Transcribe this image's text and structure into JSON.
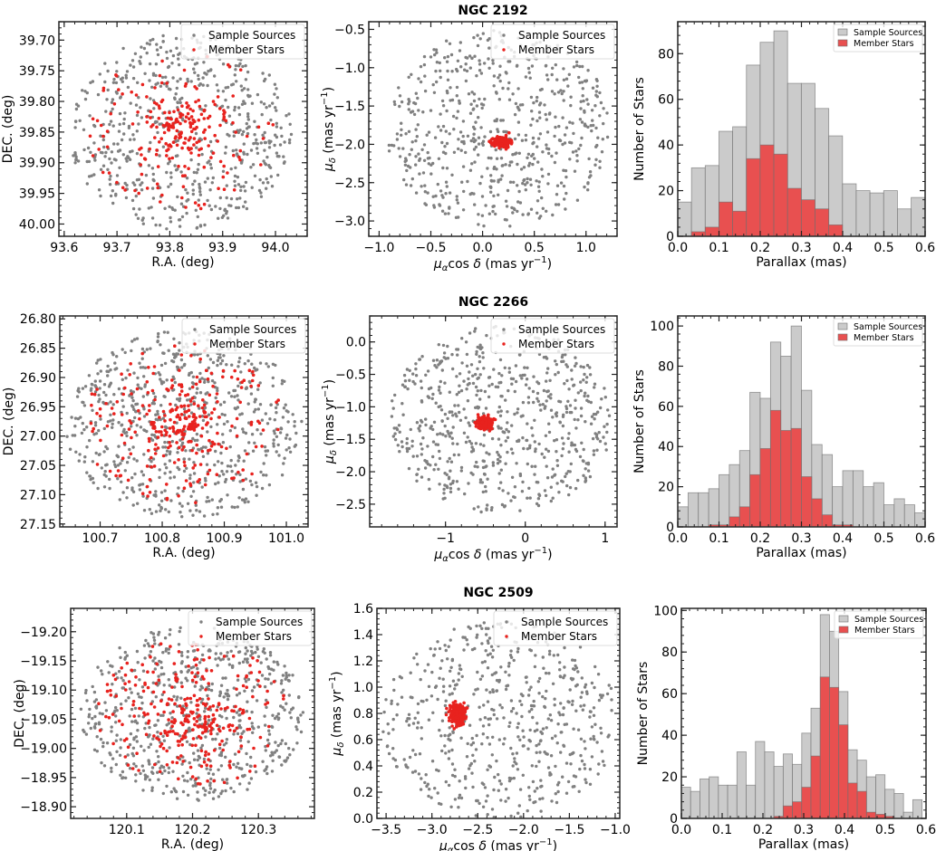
{
  "chart_data": [
    {
      "row_title": "NGC 2192",
      "panels": [
        {
          "type": "scatter",
          "xlabel": "R.A. (deg)",
          "ylabel": "DEC. (deg)",
          "xlim": [
            93.59,
            94.06
          ],
          "ylim": [
            40.02,
            39.67
          ],
          "xticks": [
            93.6,
            93.7,
            93.8,
            93.9,
            94.0
          ],
          "xtick_labels": [
            "93.6",
            "93.7",
            "93.8",
            "93.9",
            "94.0"
          ],
          "yticks": [
            39.7,
            39.75,
            39.8,
            39.85,
            39.9,
            39.95,
            40.0
          ],
          "ytick_labels": [
            "39.70",
            "39.75",
            "39.80",
            "39.85",
            "39.90",
            "39.95",
            "40.00"
          ],
          "legend": [
            "Sample Sources",
            "Member Stars"
          ],
          "legend_position": "top-right",
          "sample_center": [
            93.82,
            39.85
          ],
          "sample_spread": [
            0.21,
            0.16
          ],
          "sample_count": 620,
          "member_center": [
            93.82,
            39.845
          ],
          "member_spread": [
            0.05,
            0.04
          ],
          "member_count": 230
        },
        {
          "type": "scatter",
          "xlabel": "μαcos δ (mas yr⁻¹)",
          "ylabel": "μδ (mas yr⁻¹)",
          "xlim": [
            -1.1,
            1.3
          ],
          "ylim": [
            -3.2,
            -0.4
          ],
          "xticks": [
            -1.0,
            -0.5,
            0.0,
            0.5,
            1.0
          ],
          "xtick_labels": [
            "−1.0",
            "−0.5",
            "0.0",
            "0.5",
            "1.0"
          ],
          "yticks": [
            -0.5,
            -1.0,
            -1.5,
            -2.0,
            -2.5,
            -3.0
          ],
          "ytick_labels": [
            "−0.5",
            "−1.0",
            "−1.5",
            "−2.0",
            "−2.5",
            "−3.0"
          ],
          "legend": [
            "Sample Sources",
            "Member Stars"
          ],
          "legend_position": "top-right",
          "sample_center": [
            0.15,
            -1.8
          ],
          "sample_spread": [
            1.1,
            1.3
          ],
          "sample_count": 620,
          "member_center": [
            0.19,
            -1.97
          ],
          "member_spread": [
            0.08,
            0.07
          ],
          "member_count": 230
        },
        {
          "type": "bar",
          "xlabel": "Parallax (mas)",
          "ylabel": "Number of Stars",
          "xlim": [
            0.0,
            0.6
          ],
          "ylim": [
            0,
            94
          ],
          "bin_start": 0.0,
          "bin_width": 0.0333,
          "xticks": [
            0.0,
            0.1,
            0.2,
            0.3,
            0.4,
            0.5,
            0.6
          ],
          "xtick_labels": [
            "0.0",
            "0.1",
            "0.2",
            "0.3",
            "0.4",
            "0.5",
            "0.6"
          ],
          "yticks": [
            0,
            20,
            40,
            60,
            80
          ],
          "ytick_labels": [
            "0",
            "20",
            "40",
            "60",
            "80"
          ],
          "legend": [
            "Sample Sources",
            "Member Stars"
          ],
          "legend_position": "top-right",
          "series": [
            {
              "name": "Sample Sources",
              "values": [
                15,
                30,
                31,
                46,
                48,
                75,
                85,
                90,
                67,
                67,
                56,
                44,
                23,
                20,
                19,
                20,
                12,
                17
              ]
            },
            {
              "name": "Member Stars",
              "values": [
                0,
                2,
                4,
                15,
                11,
                34,
                40,
                36,
                21,
                16,
                12,
                5,
                0,
                0,
                0,
                0,
                0,
                0
              ]
            }
          ]
        }
      ]
    },
    {
      "row_title": "NGC 2266",
      "panels": [
        {
          "type": "scatter",
          "xlabel": "R.A. (deg)",
          "ylabel": "DEC. (deg)",
          "xlim": [
            100.635,
            101.035
          ],
          "ylim": [
            27.155,
            26.795
          ],
          "xticks": [
            100.7,
            100.8,
            100.9,
            101.0
          ],
          "xtick_labels": [
            "100.7",
            "100.8",
            "100.9",
            "101.0"
          ],
          "yticks": [
            26.8,
            26.85,
            26.9,
            26.95,
            27.0,
            27.05,
            27.1,
            27.15
          ],
          "ytick_labels": [
            "26.80",
            "26.85",
            "26.90",
            "26.95",
            "27.00",
            "27.05",
            "27.10",
            "27.15"
          ],
          "legend": [
            "Sample Sources",
            "Member Stars"
          ],
          "legend_position": "top-right",
          "sample_center": [
            100.835,
            26.98
          ],
          "sample_spread": [
            0.19,
            0.16
          ],
          "sample_count": 700,
          "member_center": [
            100.83,
            26.975
          ],
          "member_spread": [
            0.055,
            0.05
          ],
          "member_count": 290
        },
        {
          "type": "scatter",
          "xlabel": "μαcos δ (mas yr⁻¹)",
          "ylabel": "μδ (mas yr⁻¹)",
          "xlim": [
            -1.95,
            1.15
          ],
          "ylim": [
            -2.85,
            0.4
          ],
          "xticks": [
            -1,
            0,
            1
          ],
          "xtick_labels": [
            "−1",
            "0",
            "1"
          ],
          "yticks": [
            0.0,
            -0.5,
            -1.0,
            -1.5,
            -2.0,
            -2.5
          ],
          "ytick_labels": [
            "0.0",
            "−0.5",
            "−1.0",
            "−1.5",
            "−2.0",
            "−2.5"
          ],
          "legend": [
            "Sample Sources",
            "Member Stars"
          ],
          "legend_position": "top-right",
          "sample_center": [
            -0.3,
            -1.2
          ],
          "sample_spread": [
            1.4,
            1.45
          ],
          "sample_count": 640,
          "member_center": [
            -0.5,
            -1.25
          ],
          "member_spread": [
            0.09,
            0.09
          ],
          "member_count": 290
        },
        {
          "type": "bar",
          "xlabel": "Parallax (mas)",
          "ylabel": "Number of Stars",
          "xlim": [
            0.0,
            0.6
          ],
          "ylim": [
            0,
            105
          ],
          "bin_start": 0.0,
          "bin_width": 0.025,
          "xticks": [
            0.0,
            0.1,
            0.2,
            0.3,
            0.4,
            0.5,
            0.6
          ],
          "xtick_labels": [
            "0.0",
            "0.1",
            "0.2",
            "0.3",
            "0.4",
            "0.5",
            "0.6"
          ],
          "yticks": [
            0,
            20,
            40,
            60,
            80,
            100
          ],
          "ytick_labels": [
            "0",
            "20",
            "40",
            "60",
            "80",
            "100"
          ],
          "legend": [
            "Sample Sources",
            "Member Stars"
          ],
          "legend_position": "top-right",
          "series": [
            {
              "name": "Sample Sources",
              "values": [
                10,
                17,
                17,
                19,
                26,
                31,
                38,
                67,
                64,
                92,
                85,
                100,
                68,
                41,
                36,
                20,
                28,
                28,
                20,
                22,
                11,
                14,
                11,
                7
              ]
            },
            {
              "name": "Member Stars",
              "values": [
                0,
                0,
                0,
                1,
                1,
                5,
                10,
                26,
                39,
                58,
                48,
                49,
                25,
                14,
                6,
                1,
                1,
                0,
                0,
                0,
                0,
                0,
                0,
                0
              ]
            }
          ]
        }
      ]
    },
    {
      "row_title": "NGC 2509",
      "panels": [
        {
          "type": "scatter",
          "xlabel": "R.A. (deg)",
          "ylabel": "DEC. (deg)",
          "xlim": [
            120.015,
            120.385
          ],
          "ylim": [
            -18.88,
            -19.24
          ],
          "xticks": [
            120.1,
            120.2,
            120.3
          ],
          "xtick_labels": [
            "120.1",
            "120.2",
            "120.3"
          ],
          "yticks": [
            -19.2,
            -19.15,
            -19.1,
            -19.05,
            -19.0,
            -18.95,
            -18.9
          ],
          "ytick_labels": [
            "−19.20",
            "−19.15",
            "−19.10",
            "−19.05",
            "−19.00",
            "−18.95",
            "−18.90"
          ],
          "legend": [
            "Sample Sources",
            "Member Stars"
          ],
          "legend_position": "top-right",
          "sample_center": [
            120.2,
            -19.06
          ],
          "sample_spread": [
            0.17,
            0.15
          ],
          "sample_count": 660,
          "member_center": [
            120.2,
            -19.05
          ],
          "member_spread": [
            0.06,
            0.055
          ],
          "member_count": 300
        },
        {
          "type": "scatter",
          "xlabel": "μαcos δ (mas yr⁻¹)",
          "ylabel": "μδ (mas yr⁻¹)",
          "xlim": [
            -3.6,
            -0.95
          ],
          "ylim": [
            0.0,
            1.6
          ],
          "xticks": [
            -3.5,
            -3.0,
            -2.5,
            -2.0,
            -1.5,
            -1.0
          ],
          "xtick_labels": [
            "−3.5",
            "−3.0",
            "−2.5",
            "−2.0",
            "−1.5",
            "−1.0"
          ],
          "yticks": [
            0.0,
            0.2,
            0.4,
            0.6,
            0.8,
            1.0,
            1.2,
            1.4,
            1.6
          ],
          "ytick_labels": [
            "0.0",
            "0.2",
            "0.4",
            "0.6",
            "0.8",
            "1.0",
            "1.2",
            "1.4",
            "1.6"
          ],
          "legend": [
            "Sample Sources",
            "Member Stars"
          ],
          "legend_position": "top-right",
          "sample_center": [
            -2.25,
            0.75
          ],
          "sample_spread": [
            1.3,
            0.75
          ],
          "sample_count": 560,
          "member_center": [
            -2.72,
            0.8
          ],
          "member_spread": [
            0.07,
            0.07
          ],
          "member_count": 300
        },
        {
          "type": "bar",
          "xlabel": "Parallax (mas)",
          "ylabel": "Number of Stars",
          "xlim": [
            0.0,
            0.6
          ],
          "ylim": [
            0,
            101
          ],
          "bin_start": 0.0,
          "bin_width": 0.0227,
          "xticks": [
            0.0,
            0.1,
            0.2,
            0.3,
            0.4,
            0.5,
            0.6
          ],
          "xtick_labels": [
            "0.0",
            "0.1",
            "0.2",
            "0.3",
            "0.4",
            "0.5",
            "0.6"
          ],
          "yticks": [
            0,
            20,
            40,
            60,
            80,
            100
          ],
          "ytick_labels": [
            "0",
            "20",
            "40",
            "60",
            "80",
            "100"
          ],
          "legend": [
            "Sample Sources",
            "Member Stars"
          ],
          "legend_position": "top-right",
          "series": [
            {
              "name": "Sample Sources",
              "values": [
                15,
                13,
                19,
                20,
                16,
                16,
                32,
                16,
                37,
                32,
                25,
                31,
                26,
                41,
                53,
                98,
                90,
                61,
                33,
                28,
                20,
                21,
                14,
                12,
                3,
                9
              ]
            },
            {
              "name": "Member Stars",
              "values": [
                0,
                0,
                0,
                0,
                0,
                0,
                0,
                0,
                0,
                0,
                1,
                6,
                8,
                15,
                30,
                68,
                63,
                45,
                17,
                13,
                3,
                2,
                1,
                0,
                0,
                0
              ]
            }
          ]
        }
      ]
    }
  ],
  "colors": {
    "sample_points": "#808080",
    "member_points": "#e8221e",
    "sample_bars": "#cbcbcb",
    "member_bars": "#e85050",
    "bar_edge": "#6e6e6e"
  }
}
